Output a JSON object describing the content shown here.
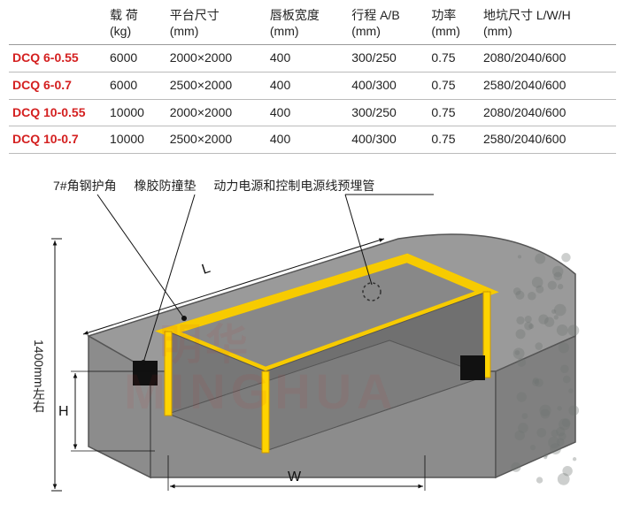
{
  "table": {
    "columns": [
      {
        "line1": "载 荷",
        "line2": "(kg)"
      },
      {
        "line1": "平台尺寸",
        "line2": "(mm)"
      },
      {
        "line1": "唇板宽度",
        "line2": "(mm)"
      },
      {
        "line1": "行程 A/B",
        "line2": "(mm)"
      },
      {
        "line1": "功率",
        "line2": "(mm)"
      },
      {
        "line1": "地坑尺寸 L/W/H",
        "line2": "(mm)"
      }
    ],
    "rows": [
      {
        "model": "DCQ 6-0.55",
        "load": "6000",
        "platform": "2000×2000",
        "lip": "400",
        "travel": "300/250",
        "power": "0.75",
        "pit": "2080/2040/600"
      },
      {
        "model": "DCQ 6-0.7",
        "load": "6000",
        "platform": "2500×2000",
        "lip": "400",
        "travel": "400/300",
        "power": "0.75",
        "pit": "2580/2040/600"
      },
      {
        "model": "DCQ 10-0.55",
        "load": "10000",
        "platform": "2000×2000",
        "lip": "400",
        "travel": "300/250",
        "power": "0.75",
        "pit": "2080/2040/600"
      },
      {
        "model": "DCQ 10-0.7",
        "load": "10000",
        "platform": "2500×2000",
        "lip": "400",
        "travel": "400/300",
        "power": "0.75",
        "pit": "2580/2040/600"
      }
    ]
  },
  "labels": {
    "angle_steel": "7#角钢护角",
    "rubber_pad": "橡胶防撞垫",
    "conduit": "动力电源和控制电源线预埋管"
  },
  "dimensions": {
    "L": "L",
    "H": "H",
    "W": "W",
    "side": "1400mm左右"
  },
  "watermark": {
    "cn": "明华",
    "en": "MINGHUA"
  },
  "diagram_style": {
    "concrete_fill": "#9a9a9a",
    "concrete_stroke": "#555555",
    "angle_color": "#ffd400",
    "angle_stroke": "#cc9900",
    "bumper_color": "#111111",
    "texture_color": "#6f7572",
    "dim_color": "#111111",
    "leader_color": "#111111",
    "conduit_color": "#333333"
  }
}
